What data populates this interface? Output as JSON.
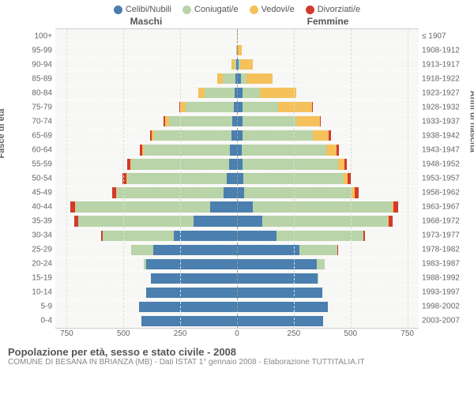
{
  "legend": [
    {
      "label": "Celibi/Nubili",
      "color": "#4a7fb0"
    },
    {
      "label": "Coniugati/e",
      "color": "#b9d4a8"
    },
    {
      "label": "Vedovi/e",
      "color": "#f4c15b"
    },
    {
      "label": "Divorziati/e",
      "color": "#d23a2e"
    }
  ],
  "headers": {
    "m": "Maschi",
    "f": "Femmine"
  },
  "ylabel_left": "Fasce di età",
  "ylabel_right": "Anni di nascita",
  "title": "Popolazione per età, sesso e stato civile - 2008",
  "subtitle": "COMUNE DI BESANA IN BRIANZA (MB) - Dati ISTAT 1° gennaio 2008 - Elaborazione TUTTITALIA.IT",
  "xmax": 800,
  "xticks": [
    750,
    500,
    250,
    0,
    250,
    500,
    750
  ],
  "colors": {
    "celibi": "#4a7fb0",
    "coniugati": "#b9d4a8",
    "vedovi": "#f4c15b",
    "divorziati": "#d23a2e",
    "plot_bg": "#f7f7f5"
  },
  "rows": [
    {
      "age": "100+",
      "birth": "≤ 1907",
      "m": {
        "cel": 0,
        "con": 0,
        "ved": 0,
        "div": 0
      },
      "f": {
        "cel": 0,
        "con": 0,
        "ved": 3,
        "div": 0
      }
    },
    {
      "age": "95-99",
      "birth": "1908-1912",
      "m": {
        "cel": 0,
        "con": 0,
        "ved": 3,
        "div": 0
      },
      "f": {
        "cel": 5,
        "con": 0,
        "ved": 15,
        "div": 0
      }
    },
    {
      "age": "90-94",
      "birth": "1913-1917",
      "m": {
        "cel": 3,
        "con": 8,
        "ved": 12,
        "div": 0
      },
      "f": {
        "cel": 8,
        "con": 5,
        "ved": 55,
        "div": 0
      }
    },
    {
      "age": "85-89",
      "birth": "1918-1922",
      "m": {
        "cel": 8,
        "con": 55,
        "ved": 25,
        "div": 0
      },
      "f": {
        "cel": 18,
        "con": 25,
        "ved": 115,
        "div": 0
      }
    },
    {
      "age": "80-84",
      "birth": "1923-1927",
      "m": {
        "cel": 12,
        "con": 130,
        "ved": 30,
        "div": 0
      },
      "f": {
        "cel": 25,
        "con": 75,
        "ved": 160,
        "div": 0
      }
    },
    {
      "age": "75-79",
      "birth": "1928-1932",
      "m": {
        "cel": 15,
        "con": 210,
        "ved": 25,
        "div": 3
      },
      "f": {
        "cel": 25,
        "con": 155,
        "ved": 150,
        "div": 3
      }
    },
    {
      "age": "70-74",
      "birth": "1933-1937",
      "m": {
        "cel": 20,
        "con": 280,
        "ved": 18,
        "div": 5
      },
      "f": {
        "cel": 25,
        "con": 235,
        "ved": 105,
        "div": 5
      }
    },
    {
      "age": "65-69",
      "birth": "1938-1942",
      "m": {
        "cel": 25,
        "con": 340,
        "ved": 10,
        "div": 8
      },
      "f": {
        "cel": 25,
        "con": 310,
        "ved": 70,
        "div": 8
      }
    },
    {
      "age": "60-64",
      "birth": "1943-1947",
      "m": {
        "cel": 30,
        "con": 380,
        "ved": 8,
        "div": 10
      },
      "f": {
        "cel": 22,
        "con": 370,
        "ved": 45,
        "div": 10
      }
    },
    {
      "age": "55-59",
      "birth": "1948-1952",
      "m": {
        "cel": 35,
        "con": 430,
        "ved": 5,
        "div": 12
      },
      "f": {
        "cel": 25,
        "con": 420,
        "ved": 28,
        "div": 12
      }
    },
    {
      "age": "50-54",
      "birth": "1953-1957",
      "m": {
        "cel": 45,
        "con": 440,
        "ved": 3,
        "div": 15
      },
      "f": {
        "cel": 28,
        "con": 440,
        "ved": 18,
        "div": 15
      }
    },
    {
      "age": "45-49",
      "birth": "1958-1962",
      "m": {
        "cel": 60,
        "con": 470,
        "ved": 3,
        "div": 18
      },
      "f": {
        "cel": 30,
        "con": 475,
        "ved": 12,
        "div": 18
      }
    },
    {
      "age": "40-44",
      "birth": "1963-1967",
      "m": {
        "cel": 120,
        "con": 590,
        "ved": 2,
        "div": 22
      },
      "f": {
        "cel": 70,
        "con": 610,
        "ved": 8,
        "div": 22
      }
    },
    {
      "age": "35-39",
      "birth": "1968-1972",
      "m": {
        "cel": 190,
        "con": 510,
        "ved": 0,
        "div": 18
      },
      "f": {
        "cel": 110,
        "con": 555,
        "ved": 3,
        "div": 18
      }
    },
    {
      "age": "30-34",
      "birth": "1973-1977",
      "m": {
        "cel": 280,
        "con": 310,
        "ved": 0,
        "div": 8
      },
      "f": {
        "cel": 175,
        "con": 380,
        "ved": 0,
        "div": 8
      }
    },
    {
      "age": "25-29",
      "birth": "1978-1982",
      "m": {
        "cel": 370,
        "con": 95,
        "ved": 0,
        "div": 2
      },
      "f": {
        "cel": 275,
        "con": 165,
        "ved": 0,
        "div": 2
      }
    },
    {
      "age": "20-24",
      "birth": "1983-1987",
      "m": {
        "cel": 400,
        "con": 12,
        "ved": 0,
        "div": 0
      },
      "f": {
        "cel": 350,
        "con": 35,
        "ved": 0,
        "div": 0
      }
    },
    {
      "age": "15-19",
      "birth": "1988-1992",
      "m": {
        "cel": 380,
        "con": 0,
        "ved": 0,
        "div": 0
      },
      "f": {
        "cel": 355,
        "con": 2,
        "ved": 0,
        "div": 0
      }
    },
    {
      "age": "10-14",
      "birth": "1993-1997",
      "m": {
        "cel": 400,
        "con": 0,
        "ved": 0,
        "div": 0
      },
      "f": {
        "cel": 375,
        "con": 0,
        "ved": 0,
        "div": 0
      }
    },
    {
      "age": "5-9",
      "birth": "1998-2002",
      "m": {
        "cel": 430,
        "con": 0,
        "ved": 0,
        "div": 0
      },
      "f": {
        "cel": 400,
        "con": 0,
        "ved": 0,
        "div": 0
      }
    },
    {
      "age": "0-4",
      "birth": "2003-2007",
      "m": {
        "cel": 420,
        "con": 0,
        "ved": 0,
        "div": 0
      },
      "f": {
        "cel": 380,
        "con": 0,
        "ved": 0,
        "div": 0
      }
    }
  ]
}
